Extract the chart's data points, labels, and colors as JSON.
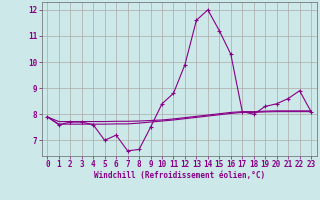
{
  "xlabel": "Windchill (Refroidissement éolien,°C)",
  "background_color": "#cce8e8",
  "grid_color": "#aaaaaa",
  "line_color": "#880088",
  "spine_color": "#666666",
  "x_values": [
    0,
    1,
    2,
    3,
    4,
    5,
    6,
    7,
    8,
    9,
    10,
    11,
    12,
    13,
    14,
    15,
    16,
    17,
    18,
    19,
    20,
    21,
    22,
    23
  ],
  "y_windchill": [
    7.9,
    7.6,
    7.7,
    7.7,
    7.6,
    7.0,
    7.2,
    6.6,
    6.65,
    7.5,
    8.4,
    8.8,
    9.9,
    11.6,
    12.0,
    11.2,
    10.3,
    8.1,
    8.0,
    8.3,
    8.4,
    8.6,
    8.9,
    8.1
  ],
  "y_temp_line1": [
    7.9,
    7.72,
    7.72,
    7.72,
    7.72,
    7.72,
    7.73,
    7.73,
    7.74,
    7.76,
    7.78,
    7.82,
    7.87,
    7.92,
    7.97,
    8.02,
    8.07,
    8.1,
    8.1,
    8.12,
    8.13,
    8.13,
    8.13,
    8.13
  ],
  "y_temp_line2": [
    7.9,
    7.62,
    7.62,
    7.62,
    7.62,
    7.62,
    7.63,
    7.63,
    7.66,
    7.7,
    7.74,
    7.78,
    7.83,
    7.88,
    7.93,
    7.98,
    8.03,
    8.07,
    8.07,
    8.09,
    8.1,
    8.1,
    8.1,
    8.1
  ],
  "ylim": [
    6.4,
    12.3
  ],
  "yticks": [
    7,
    8,
    9,
    10,
    11,
    12
  ],
  "xticks": [
    0,
    1,
    2,
    3,
    4,
    5,
    6,
    7,
    8,
    9,
    10,
    11,
    12,
    13,
    14,
    15,
    16,
    17,
    18,
    19,
    20,
    21,
    22,
    23
  ],
  "ylabel_fontsize": 5.5,
  "xlabel_fontsize": 5.5,
  "tick_fontsize": 5.5
}
